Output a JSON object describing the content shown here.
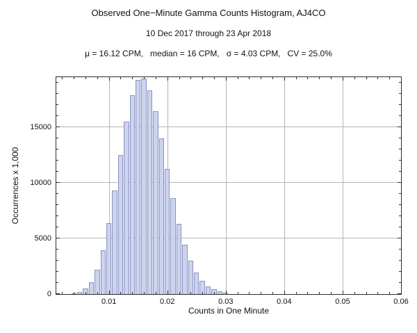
{
  "header": {
    "title": "Observed One−Minute Gamma Counts Histogram, AJ4CO",
    "subtitle": "10 Dec 2017 through 23 Apr 2018",
    "stats_line": "μ = 16.12 CPM,   median = 16 CPM,   σ = 4.03 CPM,   CV = 25.0%"
  },
  "chart_data": {
    "type": "bar",
    "title": "Observed One−Minute Gamma Counts Histogram, AJ4CO",
    "subtitle": "10 Dec 2017 through 23 Apr 2018",
    "stats_line": "μ = 16.12 CPM,   median = 16 CPM,   σ = 4.03 CPM,   CV = 25.0%",
    "xlabel": "Counts in One Minute",
    "ylabel": "Occurrences x 1,000",
    "xlim": [
      0.001,
      0.06
    ],
    "ylim": [
      0,
      19500
    ],
    "grid": true,
    "legend": false,
    "bin_width": 0.001,
    "x_major_ticks": [
      0.01,
      0.02,
      0.03,
      0.04,
      0.05,
      0.06
    ],
    "x_tick_labels": [
      "0.01",
      "0.02",
      "0.03",
      "0.04",
      "0.05",
      "0.06"
    ],
    "x_minor_step": 0.002,
    "y_major_ticks": [
      0,
      5000,
      10000,
      15000
    ],
    "y_tick_labels": [
      "0",
      "5000",
      "10000",
      "15000"
    ],
    "y_minor_step": 1000,
    "x": [
      0.004,
      0.005,
      0.006,
      0.007,
      0.008,
      0.009,
      0.01,
      0.011,
      0.012,
      0.013,
      0.014,
      0.015,
      0.016,
      0.017,
      0.018,
      0.019,
      0.02,
      0.021,
      0.022,
      0.023,
      0.024,
      0.025,
      0.026,
      0.027,
      0.028,
      0.029,
      0.03
    ],
    "values": [
      55,
      177,
      474,
      1091,
      2197,
      3947,
      6357,
      9312,
      12520,
      15513,
      17866,
      19226,
      19362,
      18333,
      16447,
      13978,
      11237,
      8632,
      6338,
      4432,
      2974,
      1927,
      1194,
      712,
      408,
      227,
      122
    ],
    "colors": {
      "bar_fill": "#ccd4ee",
      "bar_edge": "#8892c2",
      "gridline": "#b5b5b5",
      "frame": "#2e2e2e"
    }
  }
}
